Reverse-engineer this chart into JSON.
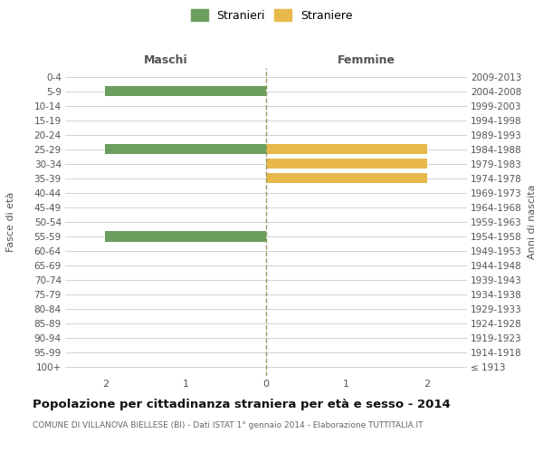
{
  "age_groups": [
    "100+",
    "95-99",
    "90-94",
    "85-89",
    "80-84",
    "75-79",
    "70-74",
    "65-69",
    "60-64",
    "55-59",
    "50-54",
    "45-49",
    "40-44",
    "35-39",
    "30-34",
    "25-29",
    "20-24",
    "15-19",
    "10-14",
    "5-9",
    "0-4"
  ],
  "birth_years": [
    "≤ 1913",
    "1914-1918",
    "1919-1923",
    "1924-1928",
    "1929-1933",
    "1934-1938",
    "1939-1943",
    "1944-1948",
    "1949-1953",
    "1954-1958",
    "1959-1963",
    "1964-1968",
    "1969-1973",
    "1974-1978",
    "1979-1983",
    "1984-1988",
    "1989-1993",
    "1994-1998",
    "1999-2003",
    "2004-2008",
    "2009-2013"
  ],
  "males": [
    0,
    0,
    0,
    0,
    0,
    0,
    0,
    0,
    0,
    2,
    0,
    0,
    0,
    0,
    0,
    2,
    0,
    0,
    0,
    2,
    0
  ],
  "females": [
    0,
    0,
    0,
    0,
    0,
    0,
    0,
    0,
    0,
    0,
    0,
    0,
    0,
    2,
    2,
    2,
    0,
    0,
    0,
    0,
    0
  ],
  "male_color": "#6a9f5e",
  "female_color": "#e8b84b",
  "center_line_color": "#999966",
  "grid_color": "#cccccc",
  "background_color": "#ffffff",
  "title": "Popolazione per cittadinanza straniera per età e sesso - 2014",
  "subtitle": "COMUNE DI VILLANOVA BIELLESE (BI) - Dati ISTAT 1° gennaio 2014 - Elaborazione TUTTITALIA.IT",
  "legend_stranieri": "Stranieri",
  "legend_straniere": "Straniere",
  "header_left": "Maschi",
  "header_right": "Femmine",
  "ylabel_left": "Fasce di età",
  "ylabel_right": "Anni di nascita",
  "xlim": 2.5
}
